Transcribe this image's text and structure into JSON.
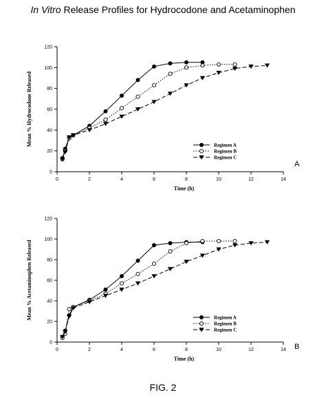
{
  "figure": {
    "title_italic": "In Vitro",
    "title_rest": " Release Profiles for Hydrocodone and Acetaminophen",
    "caption": "FIG. 2"
  },
  "chart_data": [
    {
      "type": "line",
      "panel_label": "A",
      "xlabel": "Time (h)",
      "ylabel": "Mean % Hydrocodone Released",
      "xlim": [
        0,
        14
      ],
      "ylim": [
        0,
        120
      ],
      "xticks": [
        "0",
        "2",
        "4",
        "6",
        "8",
        "10",
        "12",
        "14"
      ],
      "yticks": [
        "0",
        "20",
        "40",
        "60",
        "80",
        "100",
        "120"
      ],
      "grid": false,
      "legend_position": "lower-right",
      "series": [
        {
          "name": "Regimen A",
          "marker": "filled-circle",
          "line": "solid",
          "x": [
            0.33,
            0.5,
            0.75,
            1,
            2,
            3,
            4,
            5,
            6,
            7,
            8,
            9
          ],
          "y": [
            13,
            22,
            33,
            35,
            44,
            58,
            73,
            88,
            101,
            104,
            105,
            105
          ]
        },
        {
          "name": "Regimen B",
          "marker": "open-circle",
          "line": "dotted",
          "x": [
            0.33,
            0.5,
            0.75,
            1,
            2,
            3,
            4,
            5,
            6,
            7,
            8,
            9,
            10,
            11
          ],
          "y": [
            12,
            20,
            32,
            35,
            42,
            50,
            61,
            72,
            83,
            94,
            100,
            102,
            103,
            103
          ]
        },
        {
          "name": "Regimen C",
          "marker": "filled-triangle-down",
          "line": "dashed",
          "x": [
            0.33,
            0.5,
            0.75,
            1,
            2,
            3,
            4,
            5,
            6,
            7,
            8,
            9,
            10,
            11,
            12,
            13
          ],
          "y": [
            12,
            19,
            33,
            35,
            40,
            46,
            53,
            60,
            67,
            75,
            83,
            90,
            95,
            99,
            101,
            102
          ]
        }
      ]
    },
    {
      "type": "line",
      "panel_label": "B",
      "xlabel": "Time (h)",
      "ylabel": "Mean % Acetaminophen Released",
      "xlim": [
        0,
        14
      ],
      "ylim": [
        0,
        120
      ],
      "xticks": [
        "0",
        "2",
        "4",
        "6",
        "8",
        "10",
        "12",
        "14"
      ],
      "yticks": [
        "0",
        "20",
        "40",
        "60",
        "80",
        "100",
        "120"
      ],
      "grid": false,
      "legend_position": "lower-right",
      "series": [
        {
          "name": "Regimen A",
          "marker": "filled-circle",
          "line": "solid",
          "x": [
            0.33,
            0.5,
            0.75,
            1,
            2,
            3,
            4,
            5,
            6,
            7,
            8,
            9
          ],
          "y": [
            5,
            11,
            26,
            34,
            41,
            51,
            64,
            79,
            94,
            96,
            97,
            97
          ]
        },
        {
          "name": "Regimen B",
          "marker": "open-circle",
          "line": "dotted",
          "x": [
            0.33,
            0.5,
            0.75,
            1,
            2,
            3,
            4,
            5,
            6,
            7,
            8,
            9,
            10,
            11
          ],
          "y": [
            4,
            8,
            32,
            34,
            40,
            47,
            57,
            66,
            76,
            88,
            96,
            98,
            98,
            98
          ]
        },
        {
          "name": "Regimen C",
          "marker": "filled-triangle-down",
          "line": "dashed",
          "x": [
            0.33,
            0.5,
            0.75,
            1,
            2,
            3,
            4,
            5,
            6,
            7,
            8,
            9,
            10,
            11,
            12,
            13
          ],
          "y": [
            5,
            10,
            25,
            33,
            39,
            45,
            51,
            57,
            64,
            71,
            78,
            84,
            90,
            94,
            96,
            97
          ]
        }
      ]
    }
  ]
}
